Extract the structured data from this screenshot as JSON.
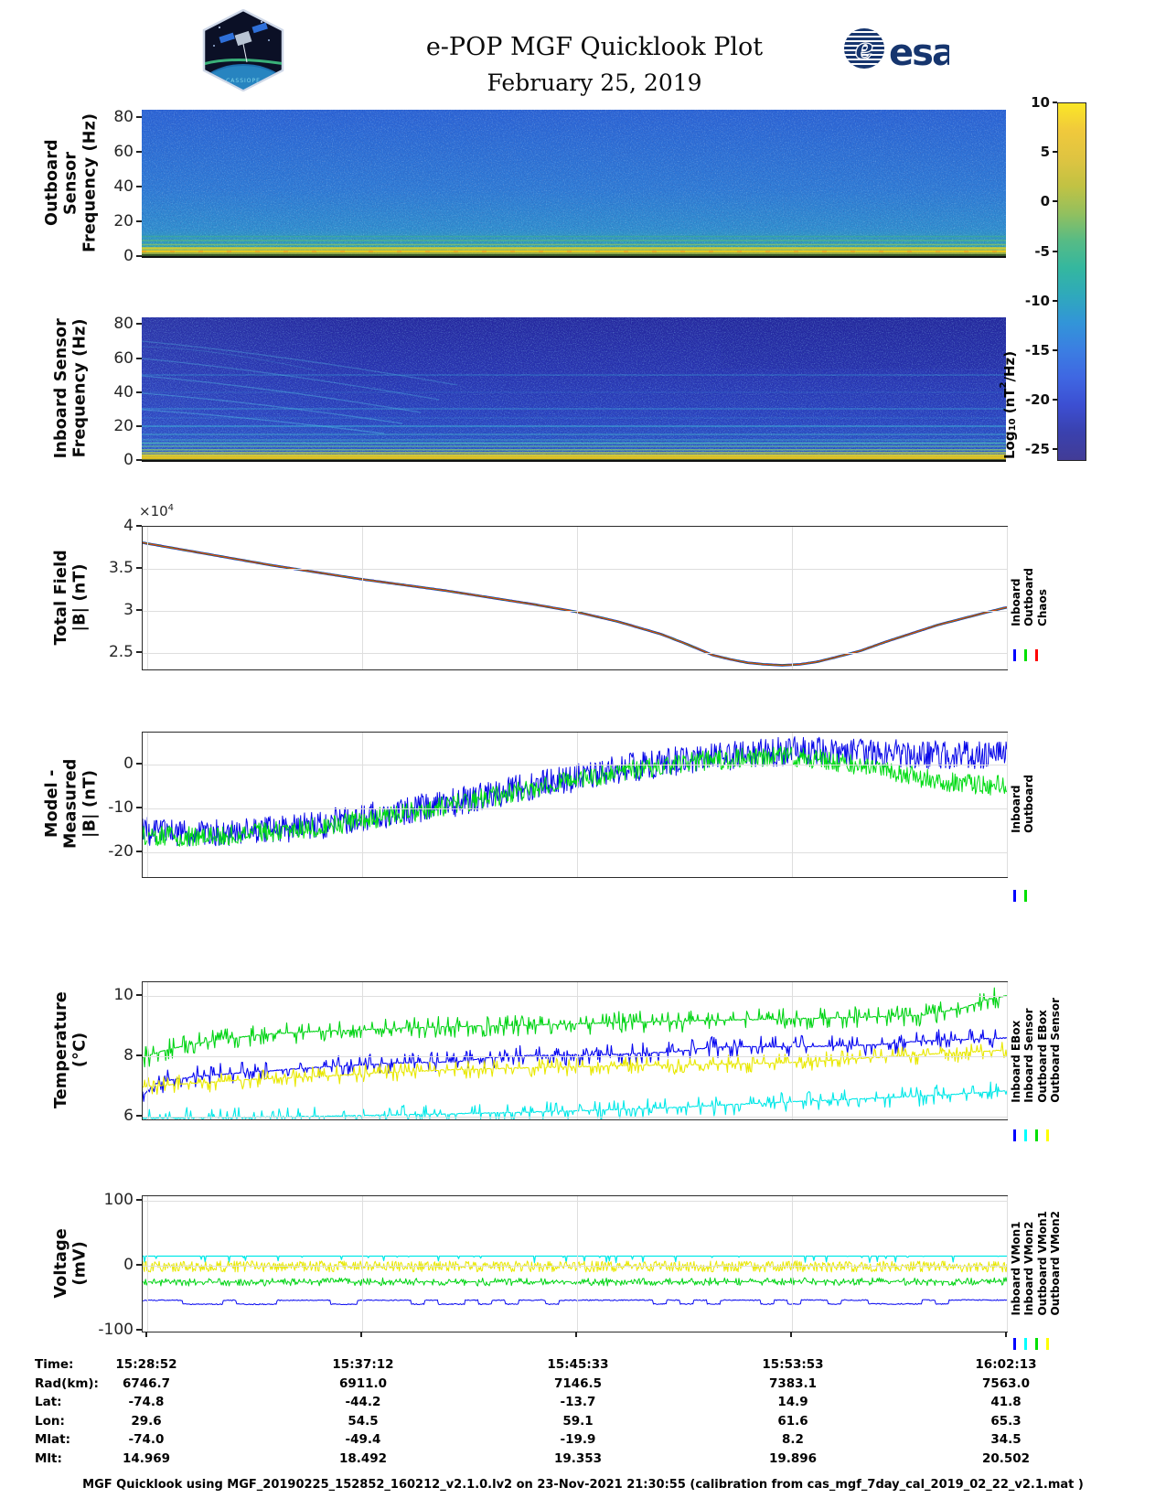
{
  "header": {
    "title": "e-POP MGF Quicklook Plot",
    "date": "February 25, 2019",
    "patch_text": "CASSIOPE",
    "esa_text": "esa"
  },
  "colorbar": {
    "label_prefix": "Log",
    "label_sub": "10",
    "label_mid": " (nT",
    "label_sup": "2",
    "label_suffix": "/Hz)",
    "ticks": [
      "10",
      "5",
      "0",
      "-5",
      "-10",
      "-15",
      "-20",
      "-25"
    ],
    "gradient": [
      "#fbe726",
      "#f0c93c",
      "#dfc441",
      "#c2c243",
      "#93c05e",
      "#57bb85",
      "#34b79f",
      "#2fa9bb",
      "#3295d8",
      "#3b7ee2",
      "#3f67e2",
      "#3c4fd2",
      "#3a41ae",
      "#423c96"
    ]
  },
  "chart_data": [
    {
      "id": "outboard_spectrogram",
      "type": "heatmap",
      "ylabel_lines": [
        "Outboard Sensor",
        "Frequency (Hz)"
      ],
      "yticks": [
        "80",
        "60",
        "40",
        "20",
        "0"
      ],
      "ylim": [
        0,
        84
      ],
      "x_range": [
        "15:28:52",
        "16:02:13"
      ],
      "value_label": "Log10 (nT^2/Hz)",
      "value_range": [
        -25,
        10
      ],
      "description": "Broadband blue background near -17 with enhanced yellow power band below ~3 Hz along the entire pass"
    },
    {
      "id": "inboard_spectrogram",
      "type": "heatmap",
      "ylabel_lines": [
        "Inboard Sensor",
        "Frequency (Hz)"
      ],
      "yticks": [
        "80",
        "60",
        "40",
        "20",
        "0"
      ],
      "ylim": [
        0,
        84
      ],
      "x_range": [
        "15:28:52",
        "16:02:13"
      ],
      "value_label": "Log10 (nT^2/Hz)",
      "value_range": [
        -25,
        10
      ],
      "description": "Darker blue background near -20 with narrowband interference lines near 5, 8, 10, 15, 20, 30 and 50 Hz, descending chirp arcs in the first third, strong yellow band below ~3 Hz"
    },
    {
      "id": "total_field",
      "type": "line",
      "ylabel_lines": [
        "Total Field",
        "|B| (nT)"
      ],
      "exp_base": "×10",
      "exp_sup": "4",
      "yticks": [
        "4",
        "3.5",
        "3",
        "2.5"
      ],
      "ylim": [
        2.3,
        4.0
      ],
      "unit_scale": "1e4 nT",
      "points": [
        [
          0,
          3.81
        ],
        [
          0.05,
          3.72
        ],
        [
          0.1,
          3.63
        ],
        [
          0.15,
          3.54
        ],
        [
          0.2,
          3.46
        ],
        [
          0.25,
          3.38
        ],
        [
          0.3,
          3.31
        ],
        [
          0.35,
          3.24
        ],
        [
          0.4,
          3.16
        ],
        [
          0.45,
          3.08
        ],
        [
          0.5,
          2.99
        ],
        [
          0.55,
          2.87
        ],
        [
          0.6,
          2.72
        ],
        [
          0.63,
          2.6
        ],
        [
          0.66,
          2.47
        ],
        [
          0.68,
          2.42
        ],
        [
          0.7,
          2.38
        ],
        [
          0.72,
          2.36
        ],
        [
          0.74,
          2.35
        ],
        [
          0.76,
          2.36
        ],
        [
          0.78,
          2.39
        ],
        [
          0.8,
          2.44
        ],
        [
          0.83,
          2.52
        ],
        [
          0.86,
          2.63
        ],
        [
          0.89,
          2.73
        ],
        [
          0.92,
          2.83
        ],
        [
          0.95,
          2.91
        ],
        [
          0.98,
          2.99
        ],
        [
          1,
          3.04
        ]
      ],
      "series": [
        {
          "name": "Inboard",
          "color": "#0000e6",
          "w": 2.6
        },
        {
          "name": "Outboard",
          "color": "#00c81e",
          "w": 1.8
        },
        {
          "name": "Chaos",
          "color": "#e03c14",
          "w": 1.2
        }
      ],
      "legend": [
        {
          "label": "Inboard",
          "color": "#0000ff"
        },
        {
          "label": "Outboard",
          "color": "#00e000"
        },
        {
          "label": "Chaos",
          "color": "#ff0000"
        }
      ]
    },
    {
      "id": "model_minus_measured",
      "type": "line",
      "ylabel_lines": [
        "Model - Measured",
        "|B| (nT)"
      ],
      "yticks": [
        "0",
        "-10",
        "-20"
      ],
      "ylim": [
        -25.5,
        7.2
      ],
      "series": [
        {
          "name": "Inboard",
          "color": "#0808e8",
          "w": 1,
          "noise": 3.3,
          "noise_mode": "band",
          "samples": 1100,
          "seed": 11,
          "points": [
            [
              0,
              -15
            ],
            [
              0.05,
              -15.3
            ],
            [
              0.1,
              -15.2
            ],
            [
              0.13,
              -14.6
            ],
            [
              0.16,
              -14.9
            ],
            [
              0.2,
              -13.8
            ],
            [
              0.25,
              -12.2
            ],
            [
              0.3,
              -10.6
            ],
            [
              0.35,
              -9
            ],
            [
              0.4,
              -7
            ],
            [
              0.45,
              -5
            ],
            [
              0.5,
              -3
            ],
            [
              0.55,
              -1.2
            ],
            [
              0.6,
              0.3
            ],
            [
              0.65,
              1.5
            ],
            [
              0.7,
              2.4
            ],
            [
              0.75,
              3
            ],
            [
              0.8,
              2.8
            ],
            [
              0.85,
              2.4
            ],
            [
              0.9,
              2.2
            ],
            [
              0.95,
              2.3
            ],
            [
              1,
              2.2
            ]
          ]
        },
        {
          "name": "Outboard",
          "color": "#00dc14",
          "w": 1,
          "noise": 2.3,
          "noise_mode": "band",
          "samples": 1100,
          "seed": 29,
          "points": [
            [
              0,
              -16
            ],
            [
              0.05,
              -16.3
            ],
            [
              0.1,
              -16
            ],
            [
              0.15,
              -15.3
            ],
            [
              0.2,
              -14.2
            ],
            [
              0.25,
              -12.8
            ],
            [
              0.3,
              -11.2
            ],
            [
              0.35,
              -9.5
            ],
            [
              0.4,
              -7.5
            ],
            [
              0.45,
              -5.5
            ],
            [
              0.5,
              -3.5
            ],
            [
              0.55,
              -1.8
            ],
            [
              0.6,
              -0.3
            ],
            [
              0.65,
              0.8
            ],
            [
              0.7,
              1.5
            ],
            [
              0.74,
              1.8
            ],
            [
              0.78,
              1.2
            ],
            [
              0.82,
              0
            ],
            [
              0.86,
              -1.5
            ],
            [
              0.9,
              -3
            ],
            [
              0.94,
              -4.2
            ],
            [
              0.97,
              -4.8
            ],
            [
              1,
              -4.5
            ]
          ]
        }
      ],
      "legend": [
        {
          "label": "Inboard",
          "color": "#0000ff"
        },
        {
          "label": "Outboard",
          "color": "#00e000"
        }
      ]
    },
    {
      "id": "temperature",
      "type": "line",
      "ylabel_lines": [
        "Temperature",
        "(°C)"
      ],
      "yticks": [
        "10",
        "8",
        "6"
      ],
      "ylim": [
        5.9,
        10.45
      ],
      "series": [
        {
          "name": "Inboard EBox",
          "color": "#0808f0",
          "w": 1.1,
          "noise": 0.3,
          "noise_mode": "spikes",
          "p": 0.3,
          "jitter": 0.015,
          "samples": 900,
          "seed": 5,
          "points": [
            [
              0,
              6.65
            ],
            [
              0.012,
              7.05
            ],
            [
              0.03,
              7.2
            ],
            [
              0.06,
              7.32
            ],
            [
              0.1,
              7.42
            ],
            [
              0.15,
              7.52
            ],
            [
              0.2,
              7.62
            ],
            [
              0.26,
              7.72
            ],
            [
              0.3,
              7.78
            ],
            [
              0.36,
              7.8
            ],
            [
              0.4,
              7.95
            ],
            [
              0.45,
              8.02
            ],
            [
              0.55,
              8.06
            ],
            [
              0.62,
              8.15
            ],
            [
              0.66,
              8.3
            ],
            [
              0.78,
              8.32
            ],
            [
              0.85,
              8.38
            ],
            [
              0.9,
              8.5
            ],
            [
              0.95,
              8.55
            ],
            [
              1,
              8.6
            ]
          ]
        },
        {
          "name": "Inboard Sensor",
          "color": "#00e8e8",
          "w": 1.1,
          "noise": 0.28,
          "noise_mode": "spikes",
          "p": 0.3,
          "jitter": 0.015,
          "samples": 900,
          "seed": 17,
          "points": [
            [
              0,
              5.95
            ],
            [
              0.12,
              5.97
            ],
            [
              0.2,
              6.0
            ],
            [
              0.3,
              6.05
            ],
            [
              0.42,
              6.12
            ],
            [
              0.52,
              6.2
            ],
            [
              0.62,
              6.3
            ],
            [
              0.7,
              6.42
            ],
            [
              0.78,
              6.52
            ],
            [
              0.86,
              6.62
            ],
            [
              0.93,
              6.72
            ],
            [
              1,
              6.85
            ]
          ]
        },
        {
          "name": "Outboard EBox",
          "color": "#00d414",
          "w": 1.1,
          "noise": 0.3,
          "noise_mode": "spikes",
          "p": 0.35,
          "jitter": 0.015,
          "samples": 900,
          "seed": 23,
          "points": [
            [
              0,
              7.95
            ],
            [
              0.02,
              8.15
            ],
            [
              0.05,
              8.35
            ],
            [
              0.09,
              8.55
            ],
            [
              0.14,
              8.72
            ],
            [
              0.2,
              8.82
            ],
            [
              0.28,
              8.9
            ],
            [
              0.36,
              8.98
            ],
            [
              0.48,
              9.05
            ],
            [
              0.6,
              9.15
            ],
            [
              0.72,
              9.22
            ],
            [
              0.82,
              9.28
            ],
            [
              0.9,
              9.35
            ],
            [
              0.95,
              9.6
            ],
            [
              0.98,
              9.9
            ],
            [
              1,
              10.0
            ]
          ]
        },
        {
          "name": "Outboard Sensor",
          "color": "#e8e800",
          "w": 1.1,
          "noise": 0.26,
          "noise_mode": "spikes",
          "p": 0.32,
          "jitter": 0.015,
          "samples": 900,
          "seed": 31,
          "points": [
            [
              0,
              6.98
            ],
            [
              0.06,
              7.1
            ],
            [
              0.12,
              7.22
            ],
            [
              0.2,
              7.32
            ],
            [
              0.28,
              7.45
            ],
            [
              0.36,
              7.55
            ],
            [
              0.46,
              7.62
            ],
            [
              0.56,
              7.68
            ],
            [
              0.66,
              7.73
            ],
            [
              0.75,
              7.78
            ],
            [
              0.83,
              7.92
            ],
            [
              0.9,
              8.05
            ],
            [
              1,
              8.2
            ]
          ]
        }
      ],
      "legend": [
        {
          "label": "Inboard EBox",
          "color": "#0000ff"
        },
        {
          "label": "Inboard Sensor",
          "color": "#00ffff"
        },
        {
          "label": "Outboard EBox",
          "color": "#00e000"
        },
        {
          "label": "Outboard Sensor",
          "color": "#ffff00"
        }
      ]
    },
    {
      "id": "voltage",
      "type": "line",
      "ylabel_lines": [
        "Voltage",
        "(mV)"
      ],
      "yticks": [
        "100",
        "0",
        "-100"
      ],
      "ylim": [
        -101,
        107
      ],
      "series": [
        {
          "name": "Inboard VMon1",
          "color": "#0808f0",
          "w": 1,
          "noise": 3,
          "noise_mode": "steps",
          "step_len": 14,
          "jitter": 0.8,
          "samples": 900,
          "seed": 41,
          "points": [
            [
              0,
              -56
            ],
            [
              1,
              -55.5
            ]
          ]
        },
        {
          "name": "Inboard VMon2",
          "color": "#00e8e8",
          "w": 1.2,
          "noise": 10,
          "noise_mode": "downspikes",
          "p": 0.05,
          "samples": 900,
          "seed": 43,
          "points": [
            [
              0,
              15
            ],
            [
              1,
              15
            ]
          ]
        },
        {
          "name": "Outboard VMon1",
          "color": "#00d414",
          "w": 1,
          "noise": 5,
          "noise_mode": "spikes",
          "p": 0.5,
          "jitter": 0.5,
          "samples": 900,
          "seed": 47,
          "points": [
            [
              0,
              -25
            ],
            [
              1,
              -24
            ]
          ]
        },
        {
          "name": "Outboard VMon2",
          "color": "#e8e800",
          "w": 1,
          "noise": 8.5,
          "noise_mode": "band",
          "samples": 1000,
          "seed": 53,
          "points": [
            [
              0,
              -1
            ],
            [
              1,
              -1
            ]
          ]
        }
      ],
      "legend": [
        {
          "label": "Inboard VMon1",
          "color": "#0000ff"
        },
        {
          "label": "Inboard VMon2",
          "color": "#00ffff"
        },
        {
          "label": "Outboard VMon1",
          "color": "#00e000"
        },
        {
          "label": "Outboard VMon2",
          "color": "#ffff00"
        }
      ]
    }
  ],
  "ephemeris": {
    "rows": [
      {
        "label": "Time:",
        "values": [
          "15:28:52",
          "15:37:12",
          "15:45:33",
          "15:53:53",
          "16:02:13"
        ]
      },
      {
        "label": "Rad(km):",
        "values": [
          "6746.7",
          "6911.0",
          "7146.5",
          "7383.1",
          "7563.0"
        ]
      },
      {
        "label": "Lat:",
        "values": [
          "-74.8",
          "-44.2",
          "-13.7",
          "14.9",
          "41.8"
        ]
      },
      {
        "label": "Lon:",
        "values": [
          "29.6",
          "54.5",
          "59.1",
          "61.6",
          "65.3"
        ]
      },
      {
        "label": "Mlat:",
        "values": [
          "-74.0",
          "-49.4",
          "-19.9",
          "8.2",
          "34.5"
        ]
      },
      {
        "label": "Mlt:",
        "values": [
          "14.969",
          "18.492",
          "19.353",
          "19.896",
          "20.502"
        ]
      }
    ]
  },
  "footer": {
    "text": "MGF Quicklook using MGF_20190225_152852_160212_v2.1.0.lv2 on 23-Nov-2021 21:30:55 (calibration from cas_mgf_7day_cal_2019_02_22_v2.1.mat )"
  }
}
